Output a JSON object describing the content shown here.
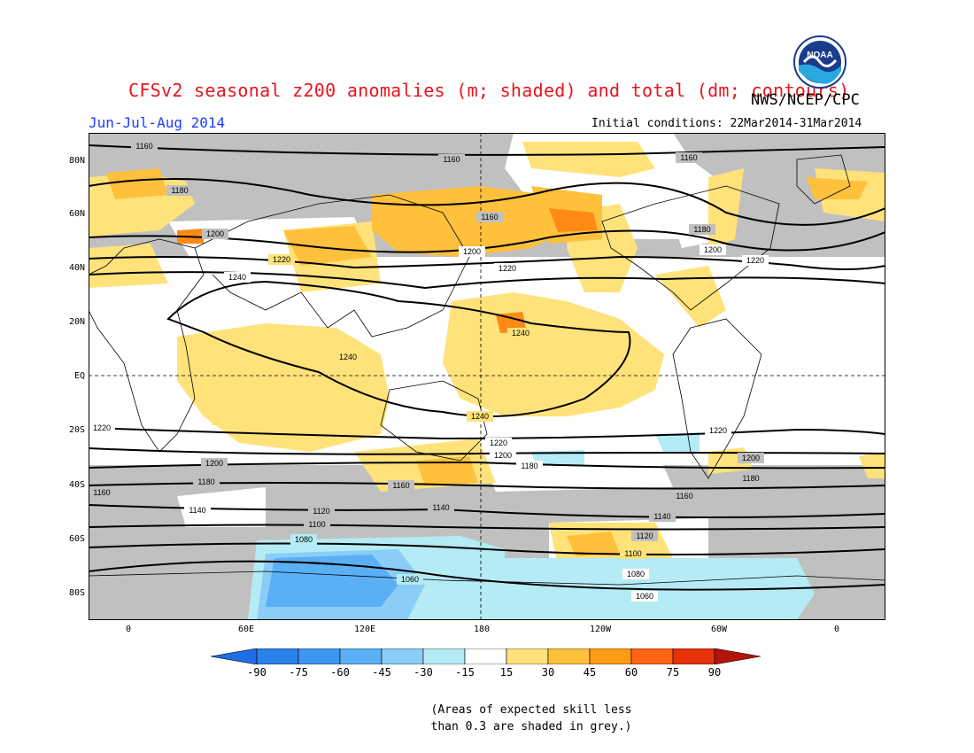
{
  "title": "CFSv2 seasonal z200 anomalies (m; shaded) and total (dm; contours)",
  "agency": "NWS/NCEP/CPC",
  "period": "Jun-Jul-Aug 2014",
  "initial_conditions": "Initial conditions: 22Mar2014-31Mar2014",
  "logo_text": "NOAA",
  "lat_labels": [
    "80N",
    "60N",
    "40N",
    "20N",
    "EQ",
    "20S",
    "40S",
    "60S",
    "80S"
  ],
  "lon_labels": [
    "0",
    "60E",
    "120E",
    "180",
    "120W",
    "60W",
    "0"
  ],
  "colorbar": {
    "labels": [
      "-90",
      "-75",
      "-60",
      "-45",
      "-30",
      "-15",
      "15",
      "30",
      "45",
      "60",
      "75",
      "90"
    ],
    "colors": [
      "#1e6ee6",
      "#2a82ea",
      "#3e96f0",
      "#5aaff5",
      "#8ccdf8",
      "#b4ebf5",
      "#ffffff",
      "#ffe27a",
      "#ffc03c",
      "#ff9a14",
      "#ff6414",
      "#e6320a",
      "#b4140a"
    ]
  },
  "contour_labels": {
    "c1160": "1160",
    "c1180": "1180",
    "c1200": "1200",
    "c1220": "1220",
    "c1240": "1240",
    "c1140": "1140",
    "c1120": "1120",
    "c1100": "1100",
    "c1080": "1080",
    "c1060": "1060"
  },
  "note_line1": "(Areas of expected skill less",
  "note_line2": "than 0.3 are shaded in grey.)",
  "colors": {
    "grey_skill": "#c0c0c0",
    "title_red": "#e8141e",
    "period_blue": "#1e3cff"
  }
}
